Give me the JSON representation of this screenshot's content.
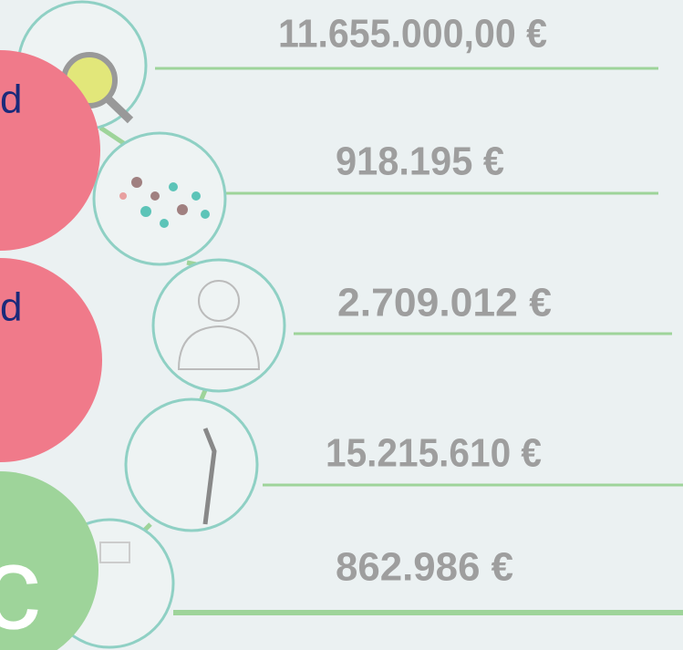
{
  "letters": [
    "d",
    "d",
    "c"
  ],
  "items": [
    {
      "amount": "11.655.000,00 €"
    },
    {
      "amount": "918.195 €"
    },
    {
      "amount": "2.709.012  €"
    },
    {
      "amount": "15.215.610 €"
    },
    {
      "amount": "862.986 €"
    }
  ]
}
